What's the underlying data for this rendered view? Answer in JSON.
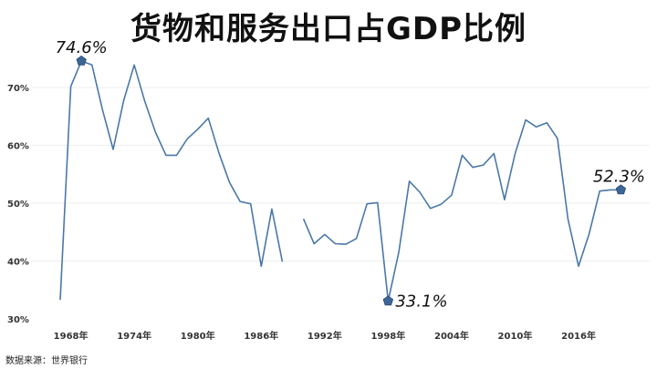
{
  "title": "货物和服务出口占GDP比例",
  "source": "数据来源：世界银行",
  "colors": {
    "line": "#4a78a8",
    "marker": "#3d6696",
    "grid": "#eeeeee"
  },
  "chart_data": {
    "type": "line",
    "title": "货物和服务出口占GDP比例",
    "xlabel": "",
    "ylabel": "",
    "xlim": [
      1967,
      2021
    ],
    "ylim": [
      30,
      76
    ],
    "y_ticks": [
      {
        "v": 30,
        "label": "30%"
      },
      {
        "v": 40,
        "label": "40%"
      },
      {
        "v": 50,
        "label": "50%"
      },
      {
        "v": 60,
        "label": "60%"
      },
      {
        "v": 70,
        "label": "70%"
      }
    ],
    "x_ticks": [
      {
        "v": 1968,
        "label": "1968年"
      },
      {
        "v": 1974,
        "label": "1974年"
      },
      {
        "v": 1980,
        "label": "1980年"
      },
      {
        "v": 1986,
        "label": "1986年"
      },
      {
        "v": 1992,
        "label": "1992年"
      },
      {
        "v": 1998,
        "label": "1998年"
      },
      {
        "v": 2004,
        "label": "2004年"
      },
      {
        "v": 2010,
        "label": "2010年"
      },
      {
        "v": 2016,
        "label": "2016年"
      }
    ],
    "grid": "horizontal",
    "series": [
      {
        "x": [
          1967,
          1968,
          1969,
          1970,
          1971,
          1972,
          1973,
          1974,
          1975,
          1976,
          1977,
          1978,
          1979,
          1980,
          1981,
          1982,
          1983,
          1984,
          1985,
          1986,
          1987,
          1988,
          1989,
          1990,
          1991,
          1992,
          1993,
          1994,
          1995,
          1996,
          1997,
          1998,
          1999,
          2000,
          2001,
          2002,
          2003,
          2004,
          2005,
          2006,
          2007,
          2008,
          2009,
          2010,
          2011,
          2012,
          2013,
          2014,
          2015,
          2016,
          2017,
          2018,
          2019,
          2020
        ],
        "y": [
          33.3,
          70.2,
          74.6,
          73.9,
          66.1,
          59.3,
          67.8,
          73.9,
          67.6,
          62.3,
          58.3,
          58.3,
          61.1,
          62.8,
          64.7,
          58.7,
          53.6,
          50.3,
          49.9,
          39.1,
          49.0,
          39.9,
          null,
          47.3,
          43.0,
          44.6,
          43.0,
          42.9,
          43.9,
          49.9,
          50.1,
          33.1,
          41.5,
          53.8,
          51.9,
          49.1,
          49.8,
          51.4,
          58.3,
          56.2,
          56.6,
          58.6,
          50.6,
          58.6,
          64.4,
          63.2,
          63.9,
          61.2,
          47.3,
          39.1,
          44.7,
          52.1,
          52.3,
          52.3
        ],
        "annotations": [
          {
            "x": 1969,
            "y": 74.6,
            "label": "74.6%"
          },
          {
            "x": 1998,
            "y": 33.1,
            "label": "33.1%"
          },
          {
            "x": 2020,
            "y": 52.3,
            "label": "52.3%"
          }
        ]
      }
    ]
  }
}
